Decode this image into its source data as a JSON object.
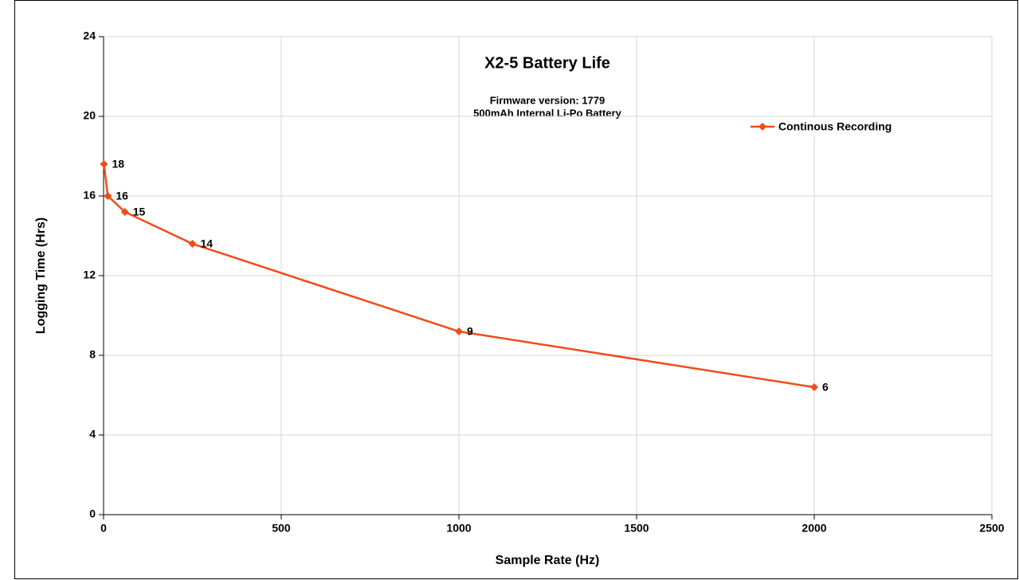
{
  "chart_data": {
    "type": "line",
    "title": "X2-5 Battery Life",
    "subtitle": [
      "Firmware version: 1779",
      "500mAh Internal Li-Po Battery"
    ],
    "xlabel": "Sample Rate (Hz)",
    "ylabel": "Logging Time (Hrs)",
    "x": [
      1,
      12,
      60,
      250,
      1000,
      2000
    ],
    "series": [
      {
        "name": "Continous Recording",
        "color": "#f04b1a",
        "values": [
          17.6,
          16.0,
          15.2,
          13.6,
          9.2,
          6.4
        ],
        "value_labels": [
          "18",
          "16",
          "15",
          "14",
          "9",
          "6"
        ]
      }
    ],
    "xlim": [
      0,
      2500
    ],
    "xticks": [
      0,
      500,
      1000,
      1500,
      2000,
      2500
    ],
    "ylim": [
      0,
      24
    ],
    "yticks": [
      0,
      4,
      8,
      12,
      16,
      20,
      24
    ],
    "grid": true,
    "legend": "upper right"
  }
}
